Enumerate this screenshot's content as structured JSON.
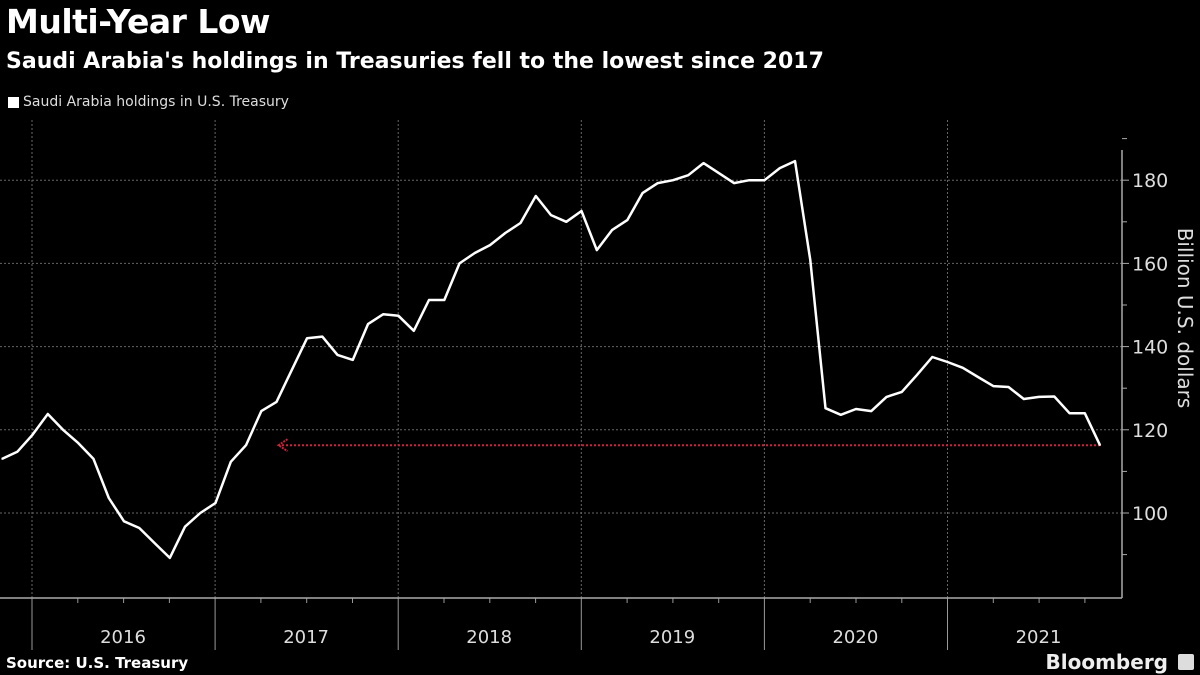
{
  "chart_data": {
    "type": "line",
    "title": "Multi-Year Low",
    "subtitle": "Saudi Arabia's holdings in Treasuries fell to the lowest since 2017",
    "ylabel": "Billion U.S. dollars",
    "xlabel": "",
    "ylim": [
      80,
      195
    ],
    "y_ticks": [
      100,
      120,
      140,
      160,
      180
    ],
    "x_tick_labels": [
      "2016",
      "2017",
      "2018",
      "2019",
      "2020",
      "2021"
    ],
    "grid": true,
    "legend_position": "top-left",
    "x_start": "2015-11",
    "frequency": "monthly",
    "series": [
      {
        "name": "Saudi Arabia holdings in U.S. Treasury",
        "color": "#ffffff",
        "values": [
          113,
          114.7,
          118.8,
          123.8,
          120,
          116.8,
          113,
          103.6,
          98,
          96.4,
          92.8,
          89.2,
          96.7,
          100,
          102.4,
          112.3,
          116.3,
          124.5,
          126.7,
          134.4,
          142,
          142.4,
          138,
          136.8,
          145.4,
          147.8,
          147.4,
          143.8,
          151.2,
          151.2,
          160,
          162.5,
          164.4,
          167.3,
          169.7,
          176.2,
          171.6,
          170,
          172.6,
          163.2,
          168,
          170.4,
          176.9,
          179.3,
          180,
          181.2,
          184.1,
          181.7,
          179.3,
          180,
          180,
          182.9,
          184.6,
          160.8,
          125.2,
          123.6,
          125,
          124.5,
          127.9,
          129.1,
          133.2,
          137.5,
          136.3,
          134.9,
          132.7,
          130.5,
          130.3,
          127.4,
          127.9,
          128,
          124,
          124,
          116.3
        ]
      }
    ],
    "annotations": [
      {
        "type": "arrow",
        "value": 116.3,
        "color": "#d0203a",
        "style": "dotted",
        "direction": "left",
        "from_index": 72,
        "to_index": 18
      }
    ]
  },
  "footer": {
    "source": "Source: U.S. Treasury",
    "brand": "Bloomberg"
  }
}
